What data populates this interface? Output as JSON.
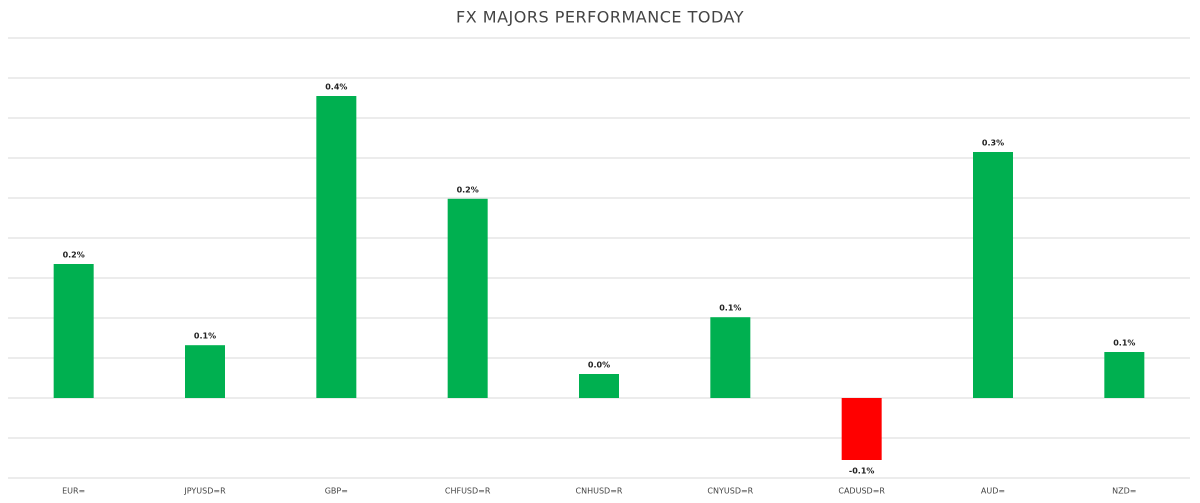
{
  "chart_data": {
    "type": "bar",
    "title": "FX MAJORS PERFORMANCE TODAY",
    "categories": [
      "EUR=",
      "JPYUSD=R",
      "GBP=",
      "CHFUSD=R",
      "CNHUSD=R",
      "CNYUSD=R",
      "CADUSD=R",
      "AUD=",
      "NZD="
    ],
    "values": [
      0.1675,
      0.066,
      0.3775,
      0.249,
      0.03,
      0.101,
      -0.0775,
      0.3075,
      0.0575
    ],
    "value_labels": [
      "0.2%",
      "0.1%",
      "0.4%",
      "0.2%",
      "0.0%",
      "0.1%",
      "-0.1%",
      "0.3%",
      "0.1%"
    ],
    "color": "#00b050",
    "negative_color": "#ff0000",
    "ylim": [
      -0.1,
      0.45
    ],
    "yticks": [
      -0.1,
      -0.05,
      0,
      0.05,
      0.1,
      0.15,
      0.2,
      0.25,
      0.3,
      0.35,
      0.4,
      0.45
    ],
    "grid": true
  }
}
